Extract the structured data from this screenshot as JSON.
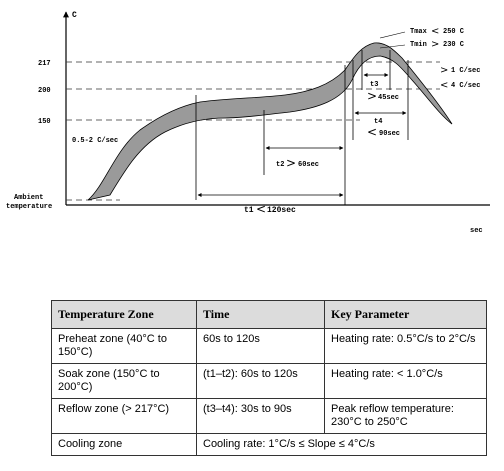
{
  "chart": {
    "y_unit": "C",
    "x_unit": "sec",
    "y_ticks": [
      "217",
      "200",
      "150"
    ],
    "ambient_line1": "Ambient",
    "ambient_line2": "temperature",
    "ramp_rate": "0.5-2 C/sec",
    "tmax_label": "Tmax",
    "tmax_value": "250 C",
    "tmin_label": "Tmin",
    "tmin_value": "230 C",
    "t1_label": "t1",
    "t1_value": "120sec",
    "t2_label": "t2",
    "t2_value": "60sec",
    "t3_label": "t3",
    "t3_value": "45sec",
    "t4_label": "t4",
    "t4_value": "90sec",
    "cool_upper": "1 C/sec",
    "cool_lower": "4 C/sec"
  },
  "table": {
    "headers": [
      "Temperature Zone",
      "Time",
      "Key Parameter"
    ],
    "rows": [
      [
        "Preheat zone (40°C to 150°C)",
        "60s to 120s",
        "Heating rate: 0.5°C/s to 2°C/s"
      ],
      [
        "Soak zone (150°C to 200°C)",
        "(t1–t2): 60s to 120s",
        "Heating rate: < 1.0°C/s"
      ],
      [
        "Reflow zone (> 217°C)",
        "(t3–t4): 30s to 90s",
        "Peak reflow temperature: 230°C to 250°C"
      ]
    ],
    "cooling_zone": "Cooling zone",
    "cooling_rate": "Cooling rate: 1°C/s ≤ Slope ≤ 4°C/s"
  }
}
